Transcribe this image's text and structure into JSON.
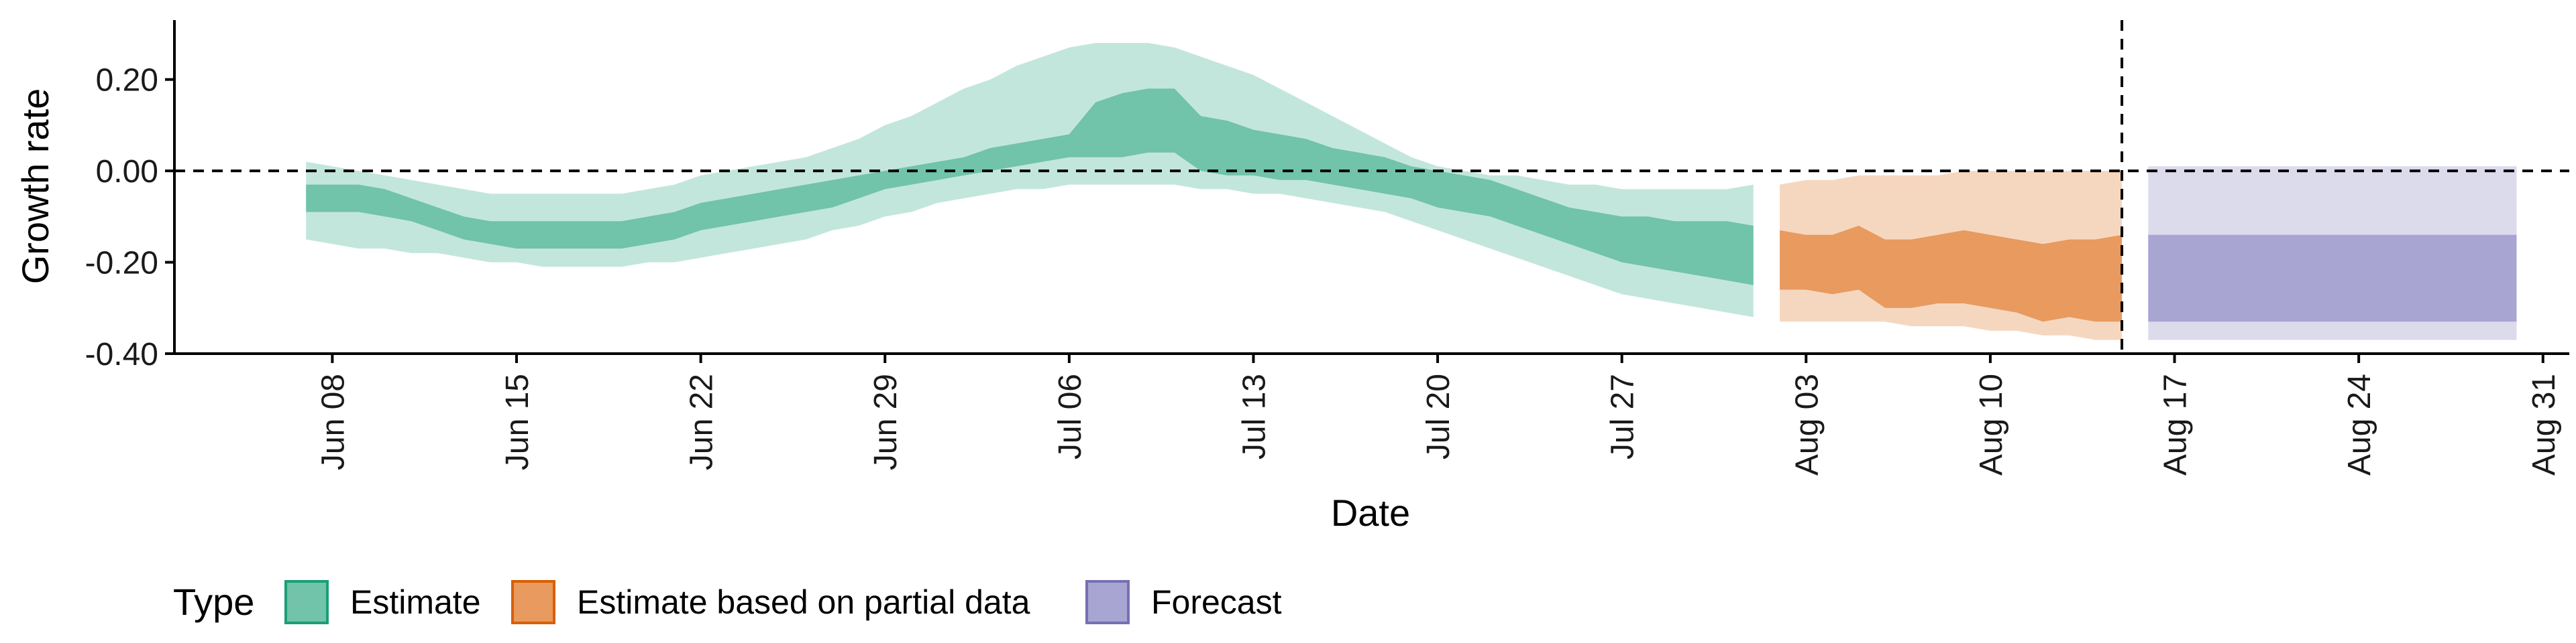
{
  "chart_data": {
    "type": "area",
    "title": "",
    "xlabel": "Date",
    "ylabel": "Growth rate",
    "xlim": [
      "2020-06-02",
      "2020-09-01"
    ],
    "ylim": [
      -0.4,
      0.33
    ],
    "x_ticks": [
      "2020-06-08",
      "2020-06-15",
      "2020-06-22",
      "2020-06-29",
      "2020-07-06",
      "2020-07-13",
      "2020-07-20",
      "2020-07-27",
      "2020-08-03",
      "2020-08-10",
      "2020-08-17",
      "2020-08-24",
      "2020-08-31"
    ],
    "x_tick_labels": [
      "Jun 08",
      "Jun 15",
      "Jun 22",
      "Jun 29",
      "Jul 06",
      "Jul 13",
      "Jul 20",
      "Jul 27",
      "Aug 03",
      "Aug 10",
      "Aug 17",
      "Aug 24",
      "Aug 31"
    ],
    "y_ticks": [
      0.2,
      0.0,
      -0.2,
      -0.4
    ],
    "y_tick_labels": [
      "0.20",
      "0.00",
      "-0.20",
      "-0.40"
    ],
    "hline": 0.0,
    "vline": "2020-08-15",
    "grid": false,
    "legend": {
      "title": "Type",
      "position": "bottom-left",
      "entries": [
        {
          "label": "Estimate",
          "color": "#1b9e77",
          "fill": "#71c3aa"
        },
        {
          "label": "Estimate based on partial data",
          "color": "#d95f02",
          "fill": "#e89a5f"
        },
        {
          "label": "Forecast",
          "color": "#7570b3",
          "fill": "#a8a5d3"
        }
      ]
    },
    "series": [
      {
        "name": "Estimate",
        "outer_color": "#c3e6dc",
        "inner_color": "#71c3aa",
        "x": [
          "2020-06-07",
          "2020-06-08",
          "2020-06-09",
          "2020-06-10",
          "2020-06-11",
          "2020-06-12",
          "2020-06-13",
          "2020-06-14",
          "2020-06-15",
          "2020-06-16",
          "2020-06-17",
          "2020-06-18",
          "2020-06-19",
          "2020-06-20",
          "2020-06-21",
          "2020-06-22",
          "2020-06-23",
          "2020-06-24",
          "2020-06-25",
          "2020-06-26",
          "2020-06-27",
          "2020-06-28",
          "2020-06-29",
          "2020-06-30",
          "2020-07-01",
          "2020-07-02",
          "2020-07-03",
          "2020-07-04",
          "2020-07-05",
          "2020-07-06",
          "2020-07-07",
          "2020-07-08",
          "2020-07-09",
          "2020-07-10",
          "2020-07-11",
          "2020-07-12",
          "2020-07-13",
          "2020-07-14",
          "2020-07-15",
          "2020-07-16",
          "2020-07-17",
          "2020-07-18",
          "2020-07-19",
          "2020-07-20",
          "2020-07-21",
          "2020-07-22",
          "2020-07-23",
          "2020-07-24",
          "2020-07-25",
          "2020-07-26",
          "2020-07-27",
          "2020-07-28",
          "2020-07-29",
          "2020-07-30",
          "2020-07-31",
          "2020-08-01"
        ],
        "upper_outer": [
          0.02,
          0.01,
          0.0,
          -0.01,
          -0.02,
          -0.03,
          -0.04,
          -0.05,
          -0.05,
          -0.05,
          -0.05,
          -0.05,
          -0.05,
          -0.04,
          -0.03,
          -0.01,
          0.0,
          0.01,
          0.02,
          0.03,
          0.05,
          0.07,
          0.1,
          0.12,
          0.15,
          0.18,
          0.2,
          0.23,
          0.25,
          0.27,
          0.28,
          0.28,
          0.28,
          0.27,
          0.25,
          0.23,
          0.21,
          0.18,
          0.15,
          0.12,
          0.09,
          0.06,
          0.03,
          0.01,
          0.0,
          -0.01,
          -0.01,
          -0.02,
          -0.03,
          -0.03,
          -0.04,
          -0.04,
          -0.04,
          -0.04,
          -0.04,
          -0.03
        ],
        "upper_inner": [
          -0.03,
          -0.03,
          -0.03,
          -0.04,
          -0.06,
          -0.08,
          -0.1,
          -0.11,
          -0.11,
          -0.11,
          -0.11,
          -0.11,
          -0.11,
          -0.1,
          -0.09,
          -0.07,
          -0.06,
          -0.05,
          -0.04,
          -0.03,
          -0.02,
          -0.01,
          0.0,
          0.01,
          0.02,
          0.03,
          0.05,
          0.06,
          0.07,
          0.08,
          0.15,
          0.17,
          0.18,
          0.18,
          0.12,
          0.11,
          0.09,
          0.08,
          0.07,
          0.05,
          0.04,
          0.03,
          0.01,
          0.0,
          -0.01,
          -0.02,
          -0.04,
          -0.06,
          -0.08,
          -0.09,
          -0.1,
          -0.1,
          -0.11,
          -0.11,
          -0.11,
          -0.12
        ],
        "lower_inner": [
          -0.09,
          -0.09,
          -0.09,
          -0.1,
          -0.11,
          -0.13,
          -0.15,
          -0.16,
          -0.17,
          -0.17,
          -0.17,
          -0.17,
          -0.17,
          -0.16,
          -0.15,
          -0.13,
          -0.12,
          -0.11,
          -0.1,
          -0.09,
          -0.08,
          -0.06,
          -0.04,
          -0.03,
          -0.02,
          -0.01,
          0.0,
          0.01,
          0.02,
          0.03,
          0.03,
          0.03,
          0.04,
          0.04,
          0.0,
          -0.01,
          -0.01,
          -0.02,
          -0.02,
          -0.03,
          -0.04,
          -0.05,
          -0.06,
          -0.08,
          -0.09,
          -0.1,
          -0.12,
          -0.14,
          -0.16,
          -0.18,
          -0.2,
          -0.21,
          -0.22,
          -0.23,
          -0.24,
          -0.25
        ],
        "lower_outer": [
          -0.15,
          -0.16,
          -0.17,
          -0.17,
          -0.18,
          -0.18,
          -0.19,
          -0.2,
          -0.2,
          -0.21,
          -0.21,
          -0.21,
          -0.21,
          -0.2,
          -0.2,
          -0.19,
          -0.18,
          -0.17,
          -0.16,
          -0.15,
          -0.13,
          -0.12,
          -0.1,
          -0.09,
          -0.07,
          -0.06,
          -0.05,
          -0.04,
          -0.04,
          -0.03,
          -0.03,
          -0.03,
          -0.03,
          -0.03,
          -0.04,
          -0.04,
          -0.05,
          -0.05,
          -0.06,
          -0.07,
          -0.08,
          -0.09,
          -0.11,
          -0.13,
          -0.15,
          -0.17,
          -0.19,
          -0.21,
          -0.23,
          -0.25,
          -0.27,
          -0.28,
          -0.29,
          -0.3,
          -0.31,
          -0.32
        ]
      },
      {
        "name": "Estimate based on partial data",
        "outer_color": "#f5d7c0",
        "inner_color": "#e89a5f",
        "x": [
          "2020-08-02",
          "2020-08-03",
          "2020-08-04",
          "2020-08-05",
          "2020-08-06",
          "2020-08-07",
          "2020-08-08",
          "2020-08-09",
          "2020-08-10",
          "2020-08-11",
          "2020-08-12",
          "2020-08-13",
          "2020-08-14",
          "2020-08-15"
        ],
        "upper_outer": [
          -0.03,
          -0.02,
          -0.02,
          -0.01,
          -0.01,
          -0.01,
          -0.01,
          0.0,
          0.0,
          0.0,
          0.0,
          0.0,
          0.0,
          0.0
        ],
        "upper_inner": [
          -0.13,
          -0.14,
          -0.14,
          -0.12,
          -0.15,
          -0.15,
          -0.14,
          -0.13,
          -0.14,
          -0.15,
          -0.16,
          -0.15,
          -0.15,
          -0.14
        ],
        "lower_inner": [
          -0.26,
          -0.26,
          -0.27,
          -0.26,
          -0.3,
          -0.3,
          -0.29,
          -0.29,
          -0.3,
          -0.31,
          -0.33,
          -0.32,
          -0.33,
          -0.33
        ],
        "lower_outer": [
          -0.33,
          -0.33,
          -0.33,
          -0.33,
          -0.33,
          -0.34,
          -0.34,
          -0.34,
          -0.35,
          -0.35,
          -0.36,
          -0.36,
          -0.37,
          -0.37
        ]
      },
      {
        "name": "Forecast",
        "outer_color": "#dcdbec",
        "inner_color": "#a8a5d3",
        "x": [
          "2020-08-16",
          "2020-08-30"
        ],
        "upper_outer": [
          0.01,
          0.01
        ],
        "upper_inner": [
          -0.14,
          -0.14
        ],
        "lower_inner": [
          -0.33,
          -0.33
        ],
        "lower_outer": [
          -0.37,
          -0.37
        ]
      }
    ]
  }
}
